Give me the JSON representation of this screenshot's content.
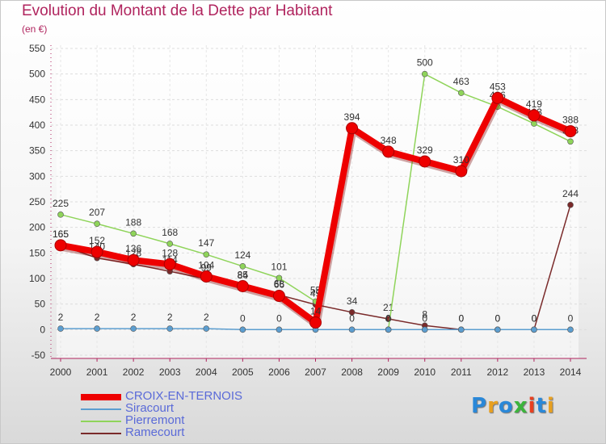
{
  "title": "Evolution du Montant de la Dette par Habitant",
  "unit_label": "(en €)",
  "logo": {
    "text": "Proxiti",
    "letters": [
      "P",
      "r",
      "o",
      "x",
      "i",
      "t",
      "i"
    ],
    "colors": [
      "#2a88d8",
      "#e8a020",
      "#2a88d8",
      "#3cb43c",
      "#e84020",
      "#2a88d8",
      "#e8a020"
    ]
  },
  "chart_data": {
    "type": "line",
    "categories": [
      "2000",
      "2001",
      "2002",
      "2003",
      "2004",
      "2005",
      "2006",
      "2007",
      "2008",
      "2009",
      "2010",
      "2011",
      "2012",
      "2013",
      "2014"
    ],
    "ylim": [
      -50,
      550
    ],
    "yticks": [
      -50,
      0,
      50,
      100,
      150,
      200,
      250,
      300,
      350,
      400,
      450,
      500,
      550
    ],
    "grid": true,
    "legend_position": "bottom-left",
    "series": [
      {
        "name": "CROIX-EN-TERNOIS",
        "color": "#ee0000",
        "values": [
          165,
          152,
          136,
          128,
          104,
          85,
          66,
          14,
          394,
          348,
          329,
          310,
          453,
          419,
          388
        ],
        "labels": [
          "165",
          "152",
          "136",
          "128",
          "104",
          "85",
          "66",
          "14",
          "394",
          "348",
          "329",
          "310",
          "453",
          "419",
          "388"
        ]
      },
      {
        "name": "Siracourt",
        "color": "#5c9ed0",
        "values": [
          2,
          2,
          2,
          2,
          2,
          0,
          0,
          0,
          0,
          0,
          0,
          0,
          0,
          0,
          0
        ],
        "labels": [
          "2",
          "2",
          "2",
          "2",
          "2",
          "0",
          "0",
          "0",
          "0",
          "0",
          "0",
          "0",
          "0",
          "0",
          "0"
        ]
      },
      {
        "name": "Pierremont",
        "color": "#8fd45a",
        "values": [
          225,
          207,
          188,
          168,
          147,
          124,
          101,
          55,
          null,
          0,
          500,
          463,
          436,
          403,
          368
        ],
        "labels": [
          "225",
          "207",
          "188",
          "168",
          "147",
          "124",
          "101",
          "55",
          "",
          "0",
          "500",
          "463",
          "436",
          "403",
          "368"
        ]
      },
      {
        "name": "Ramecourt",
        "color": "#7a2a2a",
        "values": [
          165,
          140,
          128,
          114,
          99,
          84,
          68,
          49,
          34,
          21,
          8,
          0,
          0,
          0,
          244
        ],
        "labels": [
          "165",
          "140",
          "128",
          "114",
          "99",
          "84",
          "68",
          "49",
          "34",
          "21",
          "8",
          "0",
          "0",
          "0",
          "244"
        ]
      }
    ]
  }
}
